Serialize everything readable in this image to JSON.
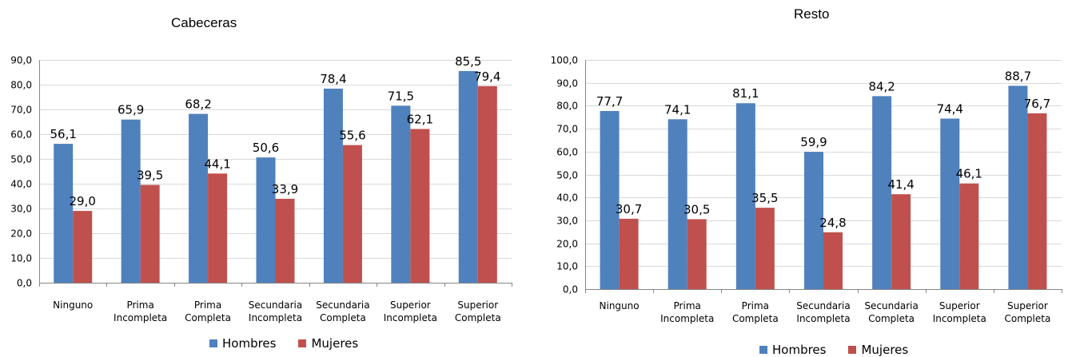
{
  "chart_data": [
    {
      "type": "bar",
      "title": "Cabeceras",
      "categories": [
        [
          "Ninguno"
        ],
        [
          "Prima",
          "Incompleta"
        ],
        [
          "Prima",
          "Completa"
        ],
        [
          "Secundaria",
          "Incompleta"
        ],
        [
          "Secundaria",
          "Completa"
        ],
        [
          "Superior",
          "Incompleta"
        ],
        [
          "Superior",
          "Completa"
        ]
      ],
      "series": [
        {
          "name": "Hombres",
          "color": "#4F81BD",
          "values": [
            56.1,
            65.9,
            68.2,
            50.6,
            78.4,
            71.5,
            85.5
          ]
        },
        {
          "name": "Mujeres",
          "color": "#C0504D",
          "values": [
            29.0,
            39.5,
            44.1,
            33.9,
            55.6,
            62.1,
            79.4
          ]
        }
      ],
      "ylim": [
        0,
        90
      ],
      "yticks": [
        "0,0",
        "10,0",
        "20,0",
        "30,0",
        "40,0",
        "50,0",
        "60,0",
        "70,0",
        "80,0",
        "90,0"
      ],
      "data_labels": [
        [
          "56,1",
          "65,9",
          "68,2",
          "50,6",
          "78,4",
          "71,5",
          "85,5"
        ],
        [
          "29,0",
          "39,5",
          "44,1",
          "33,9",
          "55,6",
          "62,1",
          "79,4"
        ]
      ],
      "grid": true,
      "legend": "bottom"
    },
    {
      "type": "bar",
      "title": "Resto",
      "categories": [
        [
          "Ninguno"
        ],
        [
          "Prima",
          "Incompleta"
        ],
        [
          "Prima",
          "Completa"
        ],
        [
          "Secundaria",
          "Incompleta"
        ],
        [
          "Secundaria",
          "Completa"
        ],
        [
          "Superior",
          "Incompleta"
        ],
        [
          "Superior",
          "Completa"
        ]
      ],
      "series": [
        {
          "name": "Hombres",
          "color": "#4F81BD",
          "values": [
            77.7,
            74.1,
            81.1,
            59.9,
            84.2,
            74.4,
            88.7
          ]
        },
        {
          "name": "Mujeres",
          "color": "#C0504D",
          "values": [
            30.7,
            30.5,
            35.5,
            24.8,
            41.4,
            46.1,
            76.7
          ]
        }
      ],
      "ylim": [
        0,
        100
      ],
      "yticks": [
        "0,0",
        "10,0",
        "20,0",
        "30,0",
        "40,0",
        "50,0",
        "60,0",
        "70,0",
        "80,0",
        "90,0",
        "100,0"
      ],
      "data_labels": [
        [
          "77,7",
          "74,1",
          "81,1",
          "59,9",
          "84,2",
          "74,4",
          "88,7"
        ],
        [
          "30,7",
          "30,5",
          "35,5",
          "24,8",
          "41,4",
          "46,1",
          "76,7"
        ]
      ],
      "grid": true,
      "legend": "bottom"
    }
  ]
}
